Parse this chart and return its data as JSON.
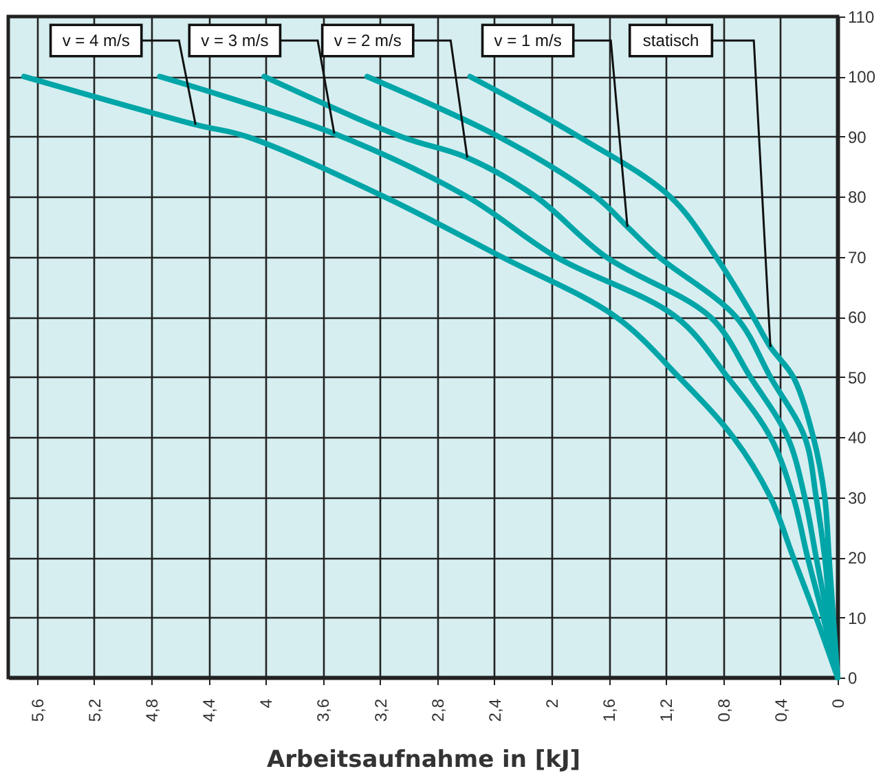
{
  "chart_data": {
    "type": "line",
    "xlabel": "Arbeitsaufnahme in [kJ]",
    "xlim": [
      5.8,
      0
    ],
    "xticks": [
      {
        "value": 5.6,
        "label": "5,6"
      },
      {
        "value": 5.2,
        "label": "5,2"
      },
      {
        "value": 4.8,
        "label": "4,8"
      },
      {
        "value": 4.4,
        "label": "4,4"
      },
      4,
      {
        "value": 3.6,
        "label": "3,6"
      },
      {
        "value": 3.2,
        "label": "3,2"
      },
      {
        "value": 2.8,
        "label": "2,8"
      },
      {
        "value": 2.4,
        "label": "2,4"
      },
      2,
      {
        "value": 1.6,
        "label": "1,6"
      },
      {
        "value": 1.2,
        "label": "1,2"
      },
      {
        "value": 0.8,
        "label": "0,8"
      },
      {
        "value": 0.4,
        "label": "0,4"
      },
      0
    ],
    "ylim": [
      0,
      110
    ],
    "yticks": [
      0,
      10,
      20,
      30,
      40,
      50,
      60,
      70,
      80,
      90,
      100,
      110
    ],
    "grid": true,
    "marker": "none",
    "line_style": "solid",
    "series": [
      {
        "color": "#00a5a8",
        "x": [
          5.69,
          4.49,
          4.13,
          3.17,
          2.35,
          1.55,
          1.11,
          0.73,
          0.47,
          0.31,
          0.15,
          0
        ],
        "values": [
          100,
          92,
          90,
          80,
          70,
          60,
          50,
          40,
          30,
          20,
          10,
          0
        ]
      },
      {
        "color": "#00a5a8",
        "x": [
          4.74,
          3.52,
          2.59,
          1.97,
          1.13,
          0.77,
          0.47,
          0.31,
          0.21,
          0.1,
          0
        ],
        "values": [
          100,
          90.5,
          80,
          70,
          60,
          50,
          40,
          30,
          20,
          10,
          0
        ]
      },
      {
        "color": "#00a5a8",
        "x": [
          4.01,
          3.05,
          2.59,
          2.11,
          1.62,
          0.89,
          0.61,
          0.35,
          0.23,
          0.15,
          0.07,
          0
        ],
        "values": [
          100,
          90,
          86.5,
          80,
          70,
          60,
          50,
          40,
          30,
          20,
          10,
          0
        ]
      },
      {
        "color": "#00a5a8",
        "x": [
          3.29,
          2.37,
          1.69,
          1.47,
          1.25,
          0.71,
          0.47,
          0.23,
          0.15,
          0.09,
          0.05,
          0
        ],
        "values": [
          100,
          90,
          80,
          75,
          70,
          60,
          50,
          40,
          30,
          20,
          10,
          0
        ]
      },
      {
        "color": "#00a5a8",
        "x": [
          2.57,
          1.81,
          1.17,
          0.85,
          0.59,
          0.47,
          0.31,
          0.17,
          0.09,
          0.06,
          0.03,
          0
        ],
        "values": [
          100,
          90,
          80,
          70,
          60,
          55,
          50,
          40,
          30,
          20,
          10,
          0
        ]
      }
    ],
    "annotations": [
      {
        "text": "v = 4 m/s",
        "x": 4.49,
        "y": 92
      },
      {
        "text": "v = 3 m/s",
        "x": 3.52,
        "y": 90.5
      },
      {
        "text": "v = 2 m/s",
        "x": 2.59,
        "y": 86.5
      },
      {
        "text": "v = 1 m/s",
        "x": 1.47,
        "y": 75
      },
      {
        "text": "statisch",
        "x": 0.47,
        "y": 55
      }
    ]
  }
}
